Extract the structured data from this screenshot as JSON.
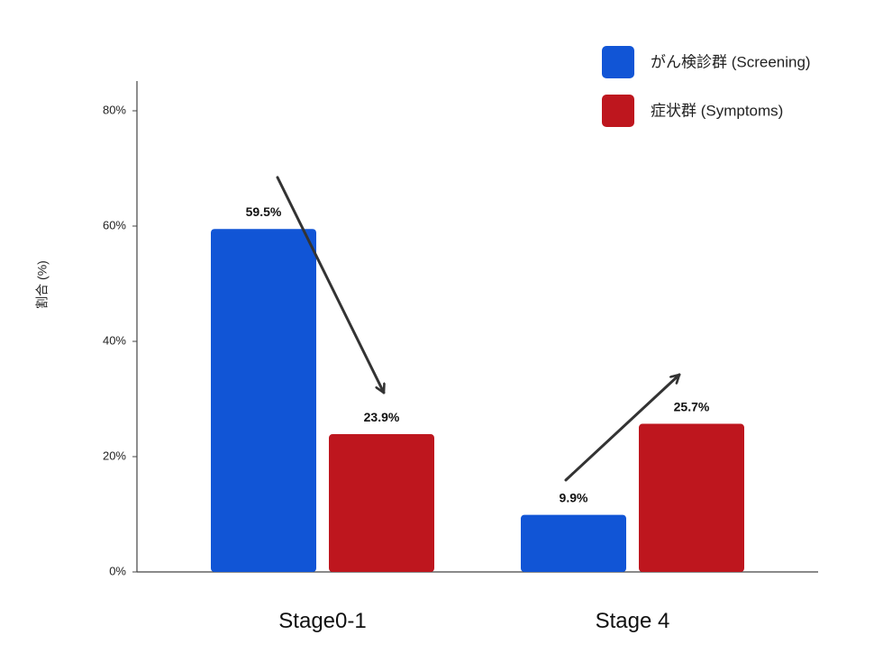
{
  "chart_data": {
    "type": "bar",
    "title": "",
    "xlabel": "",
    "ylabel": "割合 (%)",
    "ylim": [
      0,
      80
    ],
    "yticks": [
      0,
      20,
      40,
      60,
      80
    ],
    "ytick_labels": [
      "0%",
      "20%",
      "40%",
      "60%",
      "80%"
    ],
    "categories": [
      "Stage0-1",
      "Stage 4"
    ],
    "series": [
      {
        "name": "がん検診群 (Screening)",
        "values": [
          59.5,
          9.9
        ],
        "labels": [
          "59.5%",
          "9.9%"
        ],
        "color": "#1155d6"
      },
      {
        "name": "症状群 (Symptoms)",
        "values": [
          23.9,
          25.7
        ],
        "labels": [
          "23.9%",
          "25.7%"
        ],
        "color": "#be161e"
      }
    ],
    "grid": false,
    "legend_position": "top-right",
    "annotations": [
      {
        "type": "arrow",
        "direction": "down",
        "category": "Stage0-1"
      },
      {
        "type": "arrow",
        "direction": "up",
        "category": "Stage 4"
      }
    ],
    "colors": {
      "axis": "#444444",
      "arrow": "#333333"
    }
  }
}
